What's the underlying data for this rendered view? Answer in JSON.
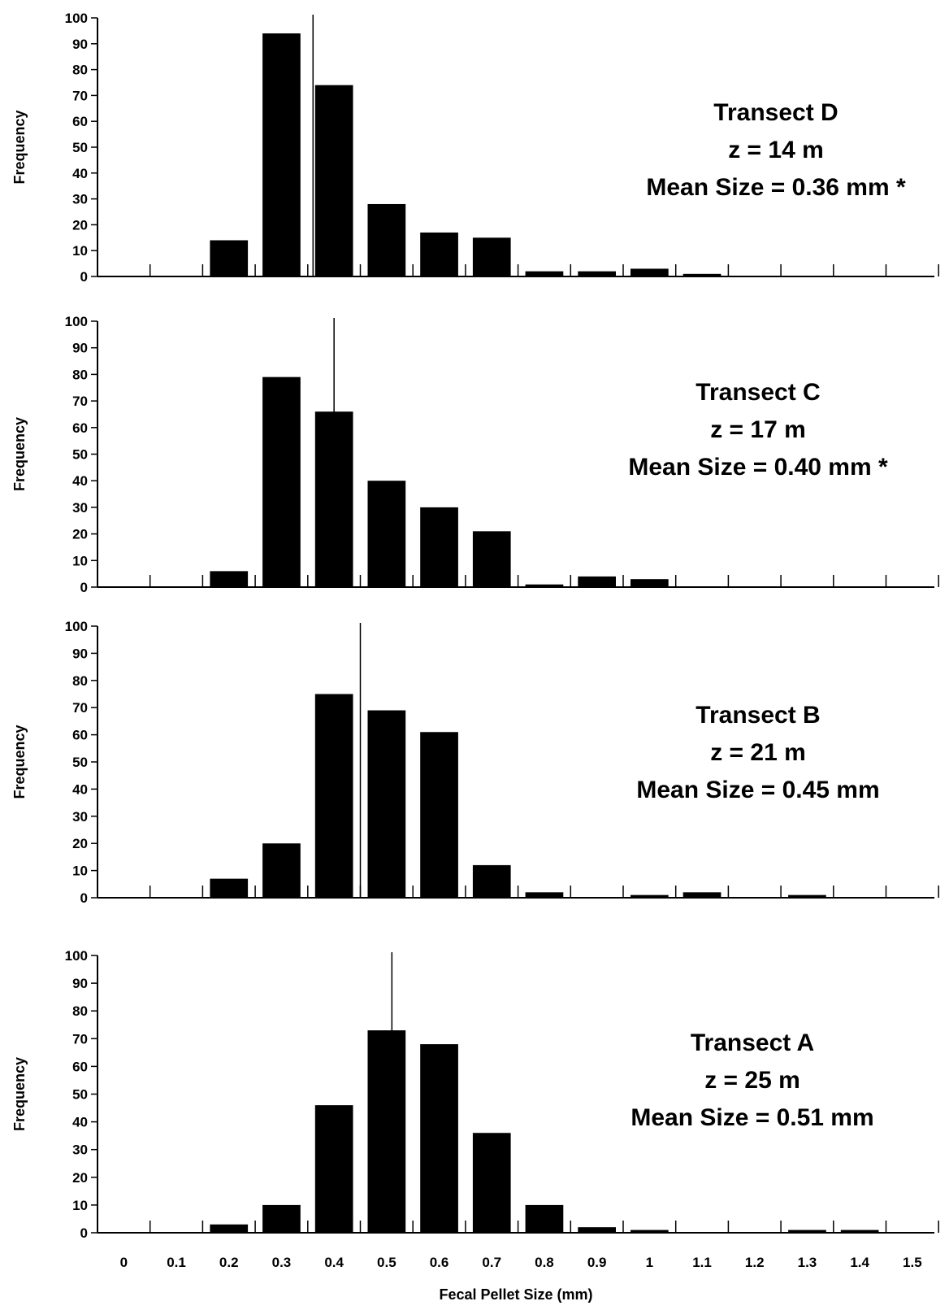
{
  "chart_data": [
    {
      "type": "bar",
      "annotation": [
        "Transect D",
        "z = 14 m",
        "Mean Size = 0.36 mm *"
      ],
      "ylabel": "Frequency",
      "xlabel": "",
      "ylim": [
        0,
        100
      ],
      "yticks": [
        0,
        10,
        20,
        30,
        40,
        50,
        60,
        70,
        80,
        90,
        100
      ],
      "categories": [
        "0",
        "0.1",
        "0.2",
        "0.3",
        "0.4",
        "0.5",
        "0.6",
        "0.7",
        "0.8",
        "0.9",
        "1",
        "1.1",
        "1.2",
        "1.3",
        "1.4",
        "1.5"
      ],
      "values": [
        0,
        0,
        14,
        94,
        74,
        28,
        17,
        15,
        2,
        2,
        3,
        1,
        0,
        0,
        0,
        0
      ],
      "mean": 0.36
    },
    {
      "type": "bar",
      "annotation": [
        "Transect C",
        "z = 17 m",
        "Mean Size = 0.40 mm *"
      ],
      "ylabel": "Frequency",
      "xlabel": "",
      "ylim": [
        0,
        100
      ],
      "yticks": [
        0,
        10,
        20,
        30,
        40,
        50,
        60,
        70,
        80,
        90,
        100
      ],
      "categories": [
        "0",
        "0.1",
        "0.2",
        "0.3",
        "0.4",
        "0.5",
        "0.6",
        "0.7",
        "0.8",
        "0.9",
        "1",
        "1.1",
        "1.2",
        "1.3",
        "1.4",
        "1.5"
      ],
      "values": [
        0,
        0,
        6,
        79,
        66,
        40,
        30,
        21,
        1,
        4,
        3,
        0,
        0,
        0,
        0,
        0
      ],
      "mean": 0.4
    },
    {
      "type": "bar",
      "annotation": [
        "Transect B",
        "z = 21 m",
        "Mean Size = 0.45 mm"
      ],
      "ylabel": "Frequency",
      "xlabel": "",
      "ylim": [
        0,
        100
      ],
      "yticks": [
        0,
        10,
        20,
        30,
        40,
        50,
        60,
        70,
        80,
        90,
        100
      ],
      "categories": [
        "0",
        "0.1",
        "0.2",
        "0.3",
        "0.4",
        "0.5",
        "0.6",
        "0.7",
        "0.8",
        "0.9",
        "1",
        "1.1",
        "1.2",
        "1.3",
        "1.4",
        "1.5"
      ],
      "values": [
        0,
        0,
        7,
        20,
        75,
        69,
        61,
        12,
        2,
        0,
        1,
        2,
        0,
        1,
        0,
        0
      ],
      "mean": 0.45
    },
    {
      "type": "bar",
      "annotation": [
        "Transect A",
        "z = 25 m",
        "Mean Size = 0.51 mm"
      ],
      "ylabel": "Frequency",
      "xlabel": "Fecal Pellet Size (mm)",
      "ylim": [
        0,
        100
      ],
      "yticks": [
        0,
        10,
        20,
        30,
        40,
        50,
        60,
        70,
        80,
        90,
        100
      ],
      "categories": [
        "0",
        "0.1",
        "0.2",
        "0.3",
        "0.4",
        "0.5",
        "0.6",
        "0.7",
        "0.8",
        "0.9",
        "1",
        "1.1",
        "1.2",
        "1.3",
        "1.4",
        "1.5"
      ],
      "values": [
        0,
        0,
        3,
        10,
        46,
        73,
        68,
        36,
        10,
        2,
        1,
        0,
        0,
        1,
        1,
        0
      ],
      "mean": 0.51
    }
  ],
  "colors": {
    "bar": "#000000",
    "axis": "#000000",
    "background": "#ffffff"
  }
}
